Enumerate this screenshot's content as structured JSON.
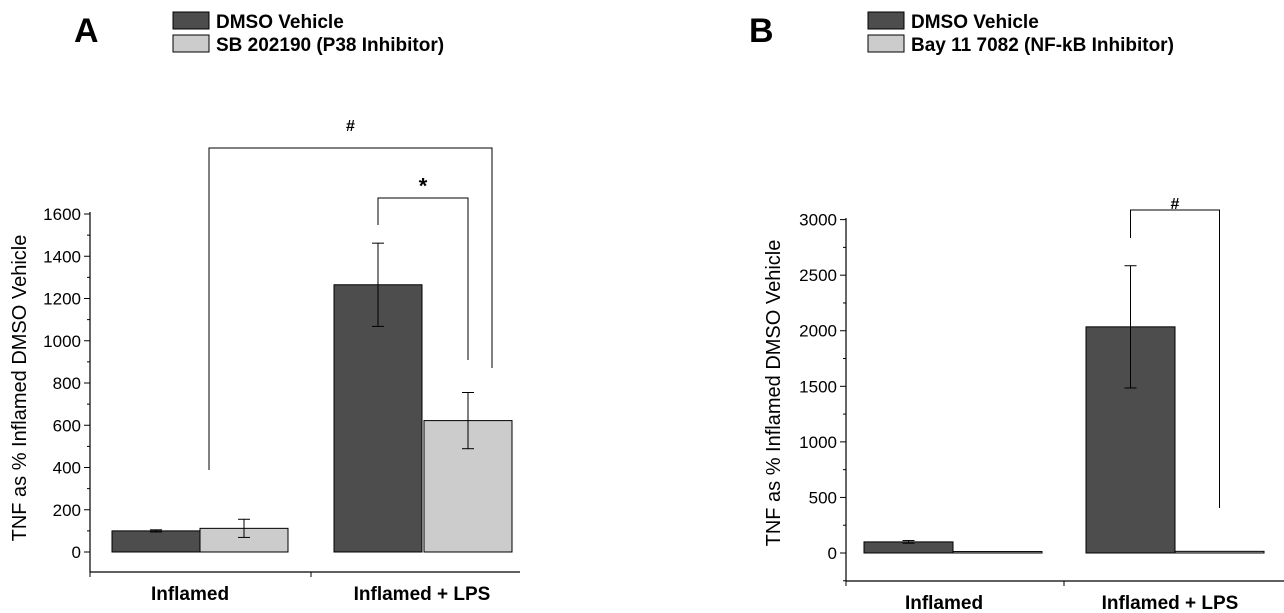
{
  "chart_data": [
    {
      "type": "bar",
      "panel_label": "A",
      "categories": [
        "Inflamed",
        "Inflamed + LPS"
      ],
      "series": [
        {
          "name": "DMSO Vehicle",
          "color": "#4d4d4d",
          "values": [
            100,
            1265
          ],
          "errors": [
            5,
            197
          ]
        },
        {
          "name": "SB 202190 (P38 Inhibitor)",
          "color": "#cccccc",
          "values": [
            112,
            622
          ],
          "errors": [
            43,
            133
          ]
        }
      ],
      "ylabel": "TNF as % Inflamed DMSO Vehicle",
      "ylim": [
        -90,
        1600
      ],
      "yticks": [
        0,
        200,
        400,
        600,
        800,
        1000,
        1200,
        1400,
        1600
      ],
      "tick_labels": [
        "0",
        "200",
        "400",
        "600",
        "800",
        "1000",
        "1200",
        "1400",
        "1600"
      ],
      "legend_position": "top",
      "grid": false,
      "annotations": [
        {
          "text": "#",
          "comparison": "Inflamed DMSO Vehicle vs Inflamed + LPS SB 202190"
        },
        {
          "text": "*",
          "comparison": "Inflamed + LPS DMSO Vehicle vs Inflamed + LPS SB 202190"
        }
      ]
    },
    {
      "type": "bar",
      "panel_label": "B",
      "categories": [
        "Inflamed",
        "Inflamed + LPS"
      ],
      "series": [
        {
          "name": "DMSO Vehicle",
          "color": "#4d4d4d",
          "values": [
            100,
            2035
          ],
          "errors": [
            12,
            550
          ]
        },
        {
          "name": "Bay 11 7082 (NF-kB Inhibitor)",
          "color": "#cccccc",
          "values": [
            13,
            15
          ],
          "errors": [
            0,
            0
          ]
        }
      ],
      "ylabel": "TNF as % Inflamed DMSO Vehicle",
      "ylim": [
        -250,
        3000
      ],
      "yticks": [
        0,
        500,
        1000,
        1500,
        2000,
        2500,
        3000
      ],
      "tick_labels": [
        "0",
        "500",
        "1000",
        "1500",
        "2000",
        "2500",
        "3000"
      ],
      "legend_position": "top",
      "grid": false,
      "annotations": [
        {
          "text": "#",
          "comparison": "Inflamed + LPS DMSO Vehicle vs Inflamed + LPS Bay 11 7082"
        }
      ]
    }
  ]
}
